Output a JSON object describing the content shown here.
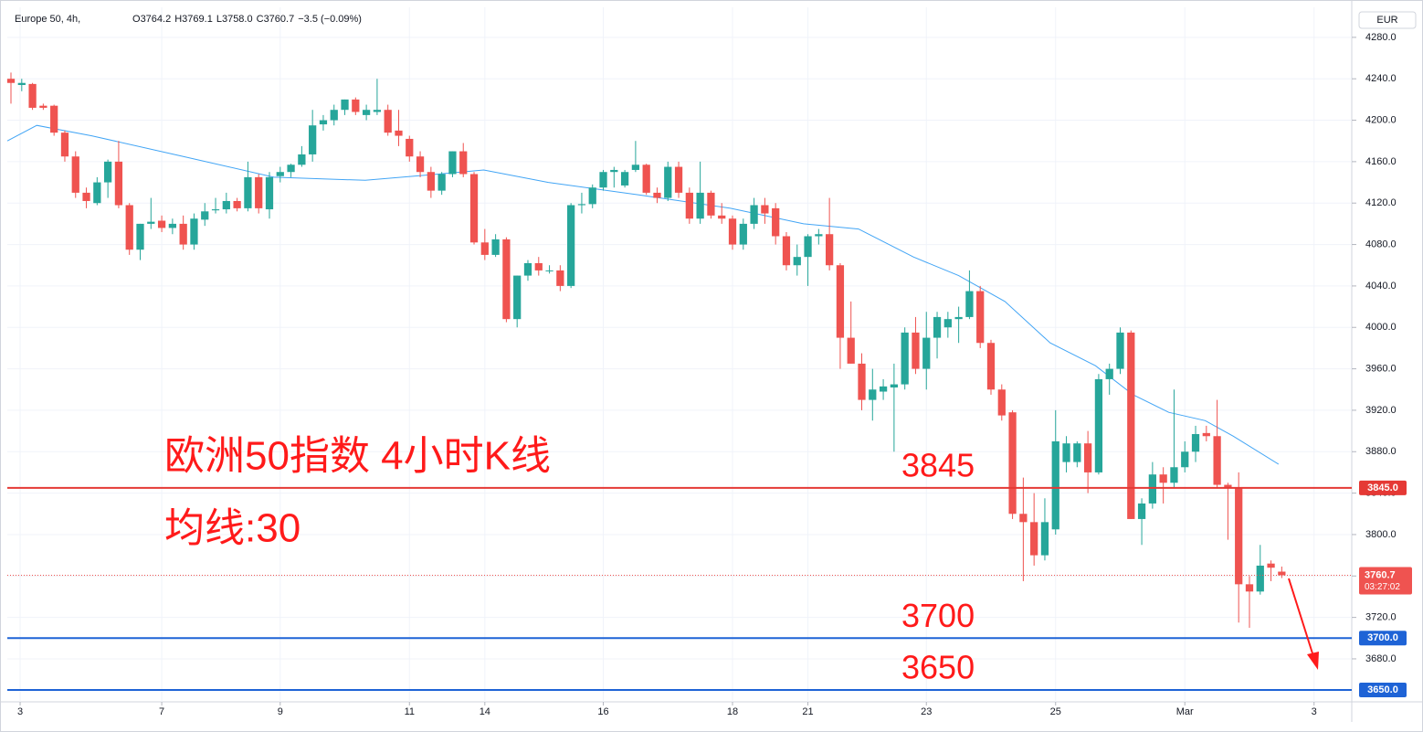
{
  "chart_data": {
    "type": "candlestick",
    "header": {
      "symbol": "Europe 50, 4h,",
      "legend": [
        {
          "key": "O",
          "value": "3764.2"
        },
        {
          "key": "H",
          "value": "3769.1"
        },
        {
          "key": "L",
          "value": "3758.0"
        },
        {
          "key": "C",
          "value": "3760.7"
        }
      ],
      "change": "−3.5 (−0.09%)"
    },
    "currency": "EUR",
    "annotations": [
      "欧洲50指数 4小时K线",
      "均线:30"
    ],
    "up_color": "#26a69a",
    "down_color": "#ef5350",
    "open": [
      4240,
      4234,
      4235,
      4214,
      4214,
      4188,
      4165,
      4130,
      4120,
      4140,
      4160,
      4118,
      4075,
      4100,
      4103,
      4096,
      4100,
      4080,
      4104,
      4113,
      4114,
      4122,
      4115,
      4145,
      4114,
      4146,
      4150,
      4157,
      4167,
      4196,
      4200,
      4210,
      4220,
      4205,
      4208,
      4210,
      4190,
      4182,
      4165,
      4150,
      4132,
      4148,
      4170,
      4148,
      4082,
      4070,
      4085,
      4008,
      4050,
      4062,
      4055,
      4055,
      4040,
      4118,
      4119,
      4135,
      4150,
      4137,
      4152,
      4157,
      4130,
      4125,
      4155,
      4130,
      4105,
      4130,
      4108,
      4105,
      4080,
      4100,
      4118,
      4115,
      4088,
      4060,
      4068,
      4088,
      4090,
      4060,
      3990,
      3965,
      3930,
      3938,
      3942,
      3945,
      3995,
      3960,
      3990,
      4000,
      4008,
      4010,
      4035,
      3985,
      3940,
      3918,
      3820,
      3812,
      3780,
      3805,
      3870,
      3870,
      3888,
      3860,
      3950,
      3960,
      3995,
      3815,
      3830,
      3858,
      3850,
      3865,
      3880,
      3898,
      3895,
      3848,
      3845,
      3752,
      3745,
      3772,
      3764.2
    ],
    "high": [
      4246,
      4240,
      4236,
      4216,
      4215,
      4190,
      4170,
      4135,
      4145,
      4162,
      4180,
      4120,
      4100,
      4125,
      4108,
      4105,
      4108,
      4110,
      4120,
      4125,
      4130,
      4125,
      4160,
      4148,
      4150,
      4155,
      4158,
      4175,
      4210,
      4205,
      4215,
      4220,
      4222,
      4215,
      4240,
      4215,
      4210,
      4185,
      4170,
      4155,
      4150,
      4170,
      4178,
      4150,
      4095,
      4090,
      4087,
      4050,
      4065,
      4068,
      4060,
      4060,
      4120,
      4130,
      4138,
      4152,
      4155,
      4152,
      4180,
      4158,
      4135,
      4160,
      4160,
      4135,
      4160,
      4132,
      4120,
      4108,
      4105,
      4125,
      4125,
      4120,
      4092,
      4080,
      4090,
      4095,
      4125,
      4062,
      4025,
      3975,
      3960,
      3950,
      3965,
      4000,
      4010,
      4015,
      4015,
      4015,
      4020,
      4055,
      4040,
      3988,
      3945,
      3920,
      3855,
      3840,
      3835,
      3920,
      3895,
      3890,
      3900,
      3955,
      3965,
      4000,
      3997,
      3835,
      3870,
      3865,
      3940,
      3890,
      3905,
      3905,
      3930,
      3850,
      3860,
      3760,
      3790,
      3775,
      3769.1
    ],
    "low": [
      4216,
      4228,
      4210,
      4210,
      4185,
      4160,
      4125,
      4115,
      4118,
      4125,
      4115,
      4070,
      4065,
      4095,
      4092,
      4090,
      4075,
      4075,
      4098,
      4110,
      4110,
      4112,
      4112,
      4110,
      4105,
      4140,
      4145,
      4155,
      4160,
      4190,
      4195,
      4205,
      4205,
      4200,
      4205,
      4185,
      4175,
      4160,
      4145,
      4125,
      4128,
      4145,
      4145,
      4080,
      4065,
      4068,
      4005,
      4000,
      4045,
      4050,
      4052,
      4035,
      4038,
      4110,
      4115,
      4132,
      4135,
      4135,
      4150,
      4128,
      4120,
      4122,
      4125,
      4100,
      4100,
      4105,
      4100,
      4075,
      4075,
      4095,
      4100,
      4080,
      4055,
      4050,
      4040,
      4080,
      4055,
      3960,
      3965,
      3920,
      3910,
      3930,
      3880,
      3940,
      3955,
      3940,
      3970,
      3990,
      3985,
      4008,
      3980,
      3935,
      3910,
      3815,
      3755,
      3770,
      3775,
      3800,
      3860,
      3865,
      3840,
      3858,
      3935,
      3955,
      3815,
      3790,
      3825,
      3830,
      3845,
      3860,
      3870,
      3890,
      3845,
      3795,
      3715,
      3710,
      3742,
      3755,
      3758.0
    ],
    "close": [
      4236,
      4236,
      4212,
      4212,
      4188,
      4165,
      4130,
      4122,
      4140,
      4160,
      4118,
      4075,
      4100,
      4102,
      4096,
      4100,
      4080,
      4105,
      4112,
      4114,
      4122,
      4115,
      4145,
      4115,
      4145,
      4150,
      4157,
      4167,
      4195,
      4200,
      4210,
      4220,
      4208,
      4210,
      4210,
      4188,
      4185,
      4165,
      4150,
      4132,
      4148,
      4170,
      4148,
      4082,
      4070,
      4085,
      4008,
      4050,
      4062,
      4055,
      4055,
      4040,
      4118,
      4119,
      4135,
      4150,
      4152,
      4150,
      4157,
      4130,
      4125,
      4155,
      4130,
      4105,
      4130,
      4108,
      4105,
      4080,
      4100,
      4118,
      4110,
      4088,
      4060,
      4068,
      4088,
      4090,
      4060,
      3990,
      3965,
      3930,
      3940,
      3943,
      3945,
      3995,
      3960,
      3990,
      4010,
      4008,
      4010,
      4035,
      3985,
      3940,
      3915,
      3820,
      3812,
      3780,
      3812,
      3890,
      3888,
      3888,
      3860,
      3950,
      3960,
      3995,
      3815,
      3830,
      3858,
      3850,
      3865,
      3880,
      3897,
      3895,
      3848,
      3845,
      3752,
      3745,
      3770,
      3768,
      3760.7
    ],
    "countdown": "03:27:02",
    "moving_average": {
      "color": "#42a5f5",
      "x": [
        -0.34,
        2.4,
        7.5,
        16,
        24.4,
        32.9,
        39.7,
        43.9,
        49.9,
        58.3,
        66.8,
        73.6,
        78.7,
        83.8,
        88,
        92.3,
        96.5,
        100.7,
        104.2,
        107.5,
        110.9,
        113.5,
        117.7
      ],
      "values": [
        4180,
        4195,
        4185,
        4165,
        4145,
        4142,
        4148,
        4152,
        4140,
        4128,
        4115,
        4100,
        4095,
        4068,
        4050,
        4025,
        3985,
        3963,
        3935,
        3918,
        3910,
        3895,
        3868
      ]
    },
    "levels": [
      {
        "value": 3845,
        "label": "3845.0",
        "annotation": "3845",
        "color": "#e53935"
      },
      {
        "value": 3700,
        "label": "3700.0",
        "annotation": "3700",
        "color": "#1e63d6"
      },
      {
        "value": 3650,
        "label": "3650.0",
        "annotation": "3650",
        "color": "#1e63d6"
      }
    ],
    "xlim": [
      -0.34,
      124.5
    ],
    "xticks": [
      {
        "value": 0.85,
        "label": "3"
      },
      {
        "value": 14,
        "label": "7"
      },
      {
        "value": 25,
        "label": "9"
      },
      {
        "value": 37,
        "label": "11"
      },
      {
        "value": 44,
        "label": "14"
      },
      {
        "value": 55,
        "label": "16"
      },
      {
        "value": 67,
        "label": "18"
      },
      {
        "value": 74,
        "label": "21"
      },
      {
        "value": 85,
        "label": "23"
      },
      {
        "value": 97,
        "label": "25"
      },
      {
        "value": 109,
        "label": "Mar"
      },
      {
        "value": 121,
        "label": "3"
      }
    ],
    "ylim": [
      3638.5,
      4309
    ],
    "yticks": [
      {
        "value": 3680,
        "label": "3680.0"
      },
      {
        "value": 3720,
        "label": "3720.0"
      },
      {
        "value": 3760,
        "label": "3760.0"
      },
      {
        "value": 3800,
        "label": "3800.0"
      },
      {
        "value": 3840,
        "label": "3840.0"
      },
      {
        "value": 3880,
        "label": "3880.0"
      },
      {
        "value": 3920,
        "label": "3920.0"
      },
      {
        "value": 3960,
        "label": "3960.0"
      },
      {
        "value": 4000,
        "label": "4000.0"
      },
      {
        "value": 4040,
        "label": "4040.0"
      },
      {
        "value": 4080,
        "label": "4080.0"
      },
      {
        "value": 4120,
        "label": "4120.0"
      },
      {
        "value": 4160,
        "label": "4160.0"
      },
      {
        "value": 4200,
        "label": "4200.0"
      },
      {
        "value": 4240,
        "label": "4240.0"
      },
      {
        "value": 4280,
        "label": "4280.0"
      }
    ],
    "grid": true,
    "grid_color": "#f0f3fa"
  }
}
